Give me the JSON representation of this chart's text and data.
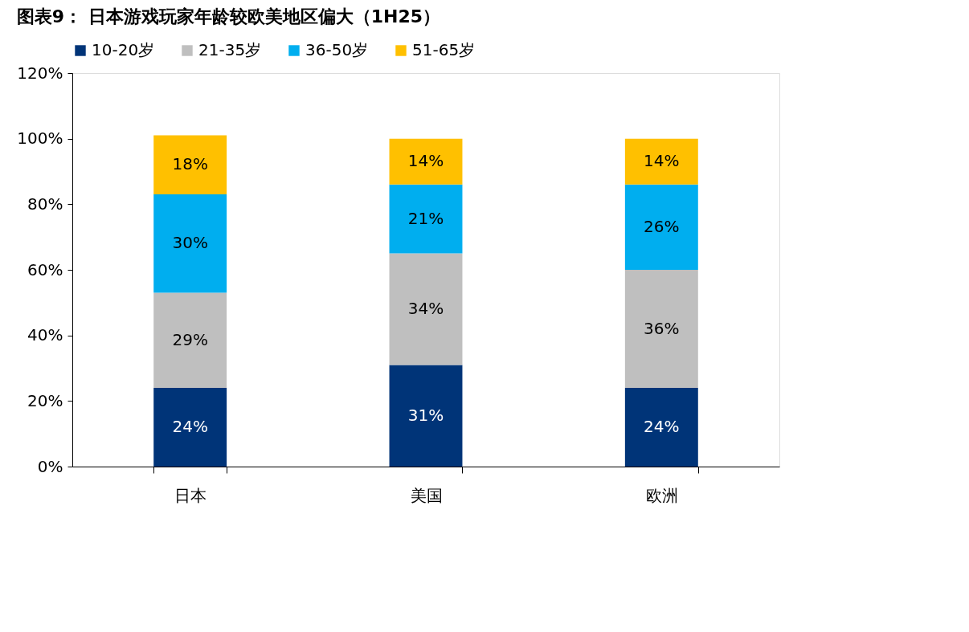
{
  "chart_data": {
    "type": "bar",
    "title": "图表9： 日本游戏玩家年龄较欧美地区偏大（1H25）",
    "categories": [
      "日本",
      "美国",
      "欧洲"
    ],
    "stacked": true,
    "series": [
      {
        "name": "10-20岁",
        "color": "#003478",
        "values": [
          24,
          31,
          24
        ],
        "value_labels": [
          "24%",
          "31%",
          "24%"
        ]
      },
      {
        "name": "21-35岁",
        "color": "#bfbfbf",
        "values": [
          29,
          34,
          36
        ],
        "value_labels": [
          "29%",
          "34%",
          "36%"
        ]
      },
      {
        "name": "36-50岁",
        "color": "#00aeef",
        "values": [
          30,
          21,
          26
        ],
        "value_labels": [
          "30%",
          "21%",
          "26%"
        ]
      },
      {
        "name": "51-65岁",
        "color": "#ffc000",
        "values": [
          18,
          14,
          14
        ],
        "value_labels": [
          "18%",
          "14%",
          "14%"
        ]
      }
    ],
    "ylim": [
      0,
      120
    ],
    "yticks": [
      {
        "value": 0,
        "label": "0%"
      },
      {
        "value": 20,
        "label": "20%"
      },
      {
        "value": 40,
        "label": "40%"
      },
      {
        "value": 60,
        "label": "60%"
      },
      {
        "value": 80,
        "label": "80%"
      },
      {
        "value": 100,
        "label": "100%"
      },
      {
        "value": 120,
        "label": "120%"
      }
    ],
    "grid": false,
    "legend": "top"
  }
}
